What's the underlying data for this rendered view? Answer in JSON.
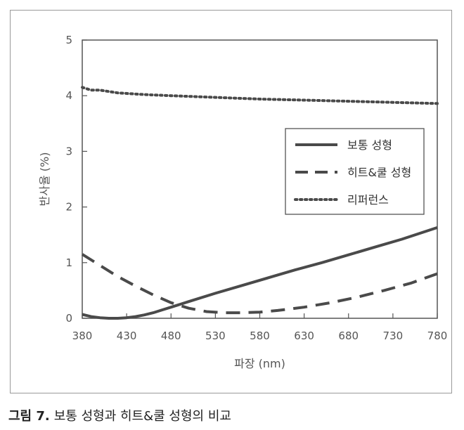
{
  "caption": {
    "figure": "그림 7.",
    "text": "보통 성형과 히트&쿨 성형의 비교"
  },
  "chart_data": {
    "type": "line",
    "title": "",
    "xlabel": "파장 (nm)",
    "ylabel": "반사율 (%)",
    "xlim": [
      380,
      780
    ],
    "ylim": [
      0,
      5
    ],
    "xticks": [
      380,
      430,
      480,
      530,
      580,
      630,
      680,
      730,
      780
    ],
    "yticks": [
      0,
      1,
      2,
      3,
      4,
      5
    ],
    "grid": false,
    "legend_position": "right",
    "series": [
      {
        "name": "보통 성형",
        "style": "solid",
        "color": "#4a4a4a",
        "x": [
          380,
          390,
          400,
          410,
          420,
          430,
          440,
          450,
          460,
          470,
          480,
          500,
          530,
          560,
          590,
          620,
          650,
          680,
          710,
          740,
          780
        ],
        "y": [
          0.07,
          0.03,
          0.01,
          0.0,
          0.0,
          0.01,
          0.03,
          0.06,
          0.1,
          0.15,
          0.2,
          0.3,
          0.45,
          0.59,
          0.73,
          0.87,
          1.0,
          1.14,
          1.28,
          1.42,
          1.63
        ]
      },
      {
        "name": "히트&쿨 성형",
        "style": "dashed",
        "color": "#4a4a4a",
        "x": [
          380,
          400,
          420,
          440,
          460,
          480,
          500,
          520,
          540,
          560,
          580,
          600,
          630,
          660,
          690,
          720,
          750,
          780
        ],
        "y": [
          1.15,
          0.95,
          0.75,
          0.58,
          0.42,
          0.28,
          0.18,
          0.12,
          0.1,
          0.1,
          0.11,
          0.14,
          0.2,
          0.28,
          0.38,
          0.5,
          0.63,
          0.8
        ]
      },
      {
        "name": "리퍼런스",
        "style": "dotted",
        "color": "#4a4a4a",
        "x": [
          380,
          390,
          400,
          420,
          450,
          480,
          530,
          580,
          630,
          680,
          730,
          780
        ],
        "y": [
          4.15,
          4.1,
          4.1,
          4.05,
          4.02,
          4.0,
          3.97,
          3.94,
          3.92,
          3.9,
          3.88,
          3.86
        ]
      }
    ]
  }
}
